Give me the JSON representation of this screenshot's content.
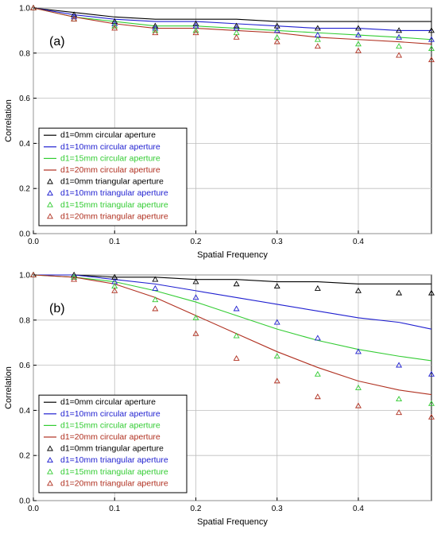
{
  "chart_data": [
    {
      "type": "line",
      "panel_label": "(a)",
      "xlabel": "Spatial Frequency",
      "ylabel": "Correlation",
      "xlim": [
        0,
        0.49
      ],
      "ylim": [
        0,
        1.0
      ],
      "x_ticks": [
        "0.0",
        "0.1",
        "0.2",
        "0.3",
        "0.4"
      ],
      "y_ticks": [
        "0.0",
        "0.2",
        "0.4",
        "0.6",
        "0.8",
        "1.0"
      ],
      "grid": true,
      "legend_position": "lower-left",
      "x": [
        0,
        0.05,
        0.1,
        0.15,
        0.2,
        0.25,
        0.3,
        0.35,
        0.4,
        0.45,
        0.49
      ],
      "series": [
        {
          "name": "d1=0mm circular aperture",
          "color": "#000000",
          "marker": "line",
          "values": [
            1.0,
            0.98,
            0.96,
            0.95,
            0.95,
            0.95,
            0.94,
            0.94,
            0.94,
            0.94,
            0.94
          ]
        },
        {
          "name": "d1=10mm circular aperture",
          "color": "#1f1fd0",
          "marker": "line",
          "values": [
            1.0,
            0.97,
            0.95,
            0.94,
            0.94,
            0.93,
            0.92,
            0.91,
            0.91,
            0.9,
            0.9
          ]
        },
        {
          "name": "d1=15mm circular aperture",
          "color": "#33cc33",
          "marker": "line",
          "values": [
            1.0,
            0.96,
            0.94,
            0.92,
            0.92,
            0.91,
            0.9,
            0.89,
            0.88,
            0.87,
            0.86
          ]
        },
        {
          "name": "d1=20mm circular aperture",
          "color": "#b03020",
          "marker": "line",
          "values": [
            1.0,
            0.96,
            0.93,
            0.91,
            0.91,
            0.9,
            0.89,
            0.87,
            0.86,
            0.85,
            0.84
          ]
        },
        {
          "name": "d1=0mm triangular aperture",
          "color": "#000000",
          "marker": "triangle",
          "values": [
            1.0,
            0.97,
            0.94,
            0.92,
            0.93,
            0.92,
            0.92,
            0.91,
            0.91,
            0.9,
            0.9
          ]
        },
        {
          "name": "d1=10mm triangular aperture",
          "color": "#1f1fd0",
          "marker": "triangle",
          "values": [
            1.0,
            0.96,
            0.93,
            0.91,
            0.92,
            0.91,
            0.9,
            0.88,
            0.88,
            0.87,
            0.86
          ]
        },
        {
          "name": "d1=15mm triangular aperture",
          "color": "#33cc33",
          "marker": "triangle",
          "values": [
            1.0,
            0.95,
            0.92,
            0.9,
            0.9,
            0.89,
            0.87,
            0.86,
            0.84,
            0.83,
            0.82
          ]
        },
        {
          "name": "d1=20mm triangular aperture",
          "color": "#b03020",
          "marker": "triangle",
          "values": [
            1.0,
            0.95,
            0.91,
            0.89,
            0.89,
            0.87,
            0.85,
            0.83,
            0.81,
            0.79,
            0.77
          ]
        }
      ]
    },
    {
      "type": "line",
      "panel_label": "(b)",
      "xlabel": "Spatial Frequency",
      "ylabel": "Correlation",
      "xlim": [
        0,
        0.49
      ],
      "ylim": [
        0,
        1.0
      ],
      "x_ticks": [
        "0.0",
        "0.1",
        "0.2",
        "0.3",
        "0.4"
      ],
      "y_ticks": [
        "0.0",
        "0.2",
        "0.4",
        "0.6",
        "0.8",
        "1.0"
      ],
      "grid": true,
      "legend_position": "lower-left",
      "x": [
        0,
        0.05,
        0.1,
        0.15,
        0.2,
        0.25,
        0.3,
        0.35,
        0.4,
        0.45,
        0.49
      ],
      "series": [
        {
          "name": "d1=0mm circular aperture",
          "color": "#000000",
          "marker": "line",
          "values": [
            1.0,
            1.0,
            0.99,
            0.99,
            0.98,
            0.98,
            0.97,
            0.97,
            0.96,
            0.96,
            0.96
          ]
        },
        {
          "name": "d1=10mm circular aperture",
          "color": "#1f1fd0",
          "marker": "line",
          "values": [
            1.0,
            1.0,
            0.98,
            0.96,
            0.93,
            0.9,
            0.87,
            0.84,
            0.81,
            0.79,
            0.76
          ]
        },
        {
          "name": "d1=15mm circular aperture",
          "color": "#33cc33",
          "marker": "line",
          "values": [
            1.0,
            0.99,
            0.97,
            0.93,
            0.88,
            0.82,
            0.76,
            0.71,
            0.67,
            0.64,
            0.62
          ]
        },
        {
          "name": "d1=20mm circular aperture",
          "color": "#b03020",
          "marker": "line",
          "values": [
            1.0,
            0.99,
            0.96,
            0.9,
            0.82,
            0.74,
            0.66,
            0.59,
            0.53,
            0.49,
            0.47
          ]
        },
        {
          "name": "d1=0mm triangular aperture",
          "color": "#000000",
          "marker": "triangle",
          "values": [
            1.0,
            1.0,
            0.99,
            0.98,
            0.97,
            0.96,
            0.95,
            0.94,
            0.93,
            0.92,
            0.92
          ]
        },
        {
          "name": "d1=10mm triangular aperture",
          "color": "#1f1fd0",
          "marker": "triangle",
          "values": [
            1.0,
            0.99,
            0.97,
            0.94,
            0.9,
            0.85,
            0.79,
            0.72,
            0.66,
            0.6,
            0.56
          ]
        },
        {
          "name": "d1=15mm triangular aperture",
          "color": "#33cc33",
          "marker": "triangle",
          "values": [
            1.0,
            0.99,
            0.95,
            0.89,
            0.81,
            0.73,
            0.64,
            0.56,
            0.5,
            0.45,
            0.43
          ]
        },
        {
          "name": "d1=20mm triangular aperture",
          "color": "#b03020",
          "marker": "triangle",
          "values": [
            1.0,
            0.98,
            0.93,
            0.85,
            0.74,
            0.63,
            0.53,
            0.46,
            0.42,
            0.39,
            0.37
          ]
        }
      ]
    }
  ]
}
